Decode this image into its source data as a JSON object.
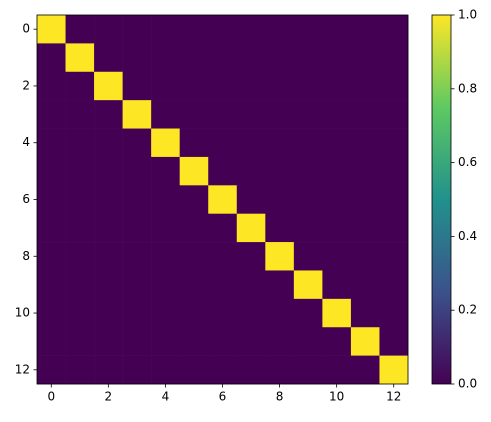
{
  "chart_data": {
    "type": "heatmap",
    "z": [
      [
        1,
        0,
        0,
        0,
        0,
        0,
        0,
        0,
        0,
        0,
        0,
        0,
        0
      ],
      [
        0,
        1,
        0,
        0,
        0,
        0,
        0,
        0,
        0,
        0,
        0,
        0,
        0
      ],
      [
        0,
        0,
        1,
        0,
        0,
        0,
        0,
        0,
        0,
        0,
        0,
        0,
        0
      ],
      [
        0,
        0,
        0,
        1,
        0,
        0,
        0,
        0,
        0,
        0,
        0,
        0,
        0
      ],
      [
        0,
        0,
        0,
        0,
        1,
        0,
        0,
        0,
        0,
        0,
        0,
        0,
        0
      ],
      [
        0,
        0,
        0,
        0,
        0,
        1,
        0,
        0,
        0,
        0,
        0,
        0,
        0
      ],
      [
        0,
        0,
        0,
        0,
        0,
        0,
        1,
        0,
        0,
        0,
        0,
        0,
        0
      ],
      [
        0,
        0,
        0,
        0,
        0,
        0,
        0,
        1,
        0,
        0,
        0,
        0,
        0
      ],
      [
        0,
        0,
        0,
        0,
        0,
        0,
        0,
        0,
        1,
        0,
        0,
        0,
        0
      ],
      [
        0,
        0,
        0,
        0,
        0,
        0,
        0,
        0,
        0,
        1,
        0,
        0,
        0
      ],
      [
        0,
        0,
        0,
        0,
        0,
        0,
        0,
        0,
        0,
        0,
        1,
        0,
        0
      ],
      [
        0,
        0,
        0,
        0,
        0,
        0,
        0,
        0,
        0,
        0,
        0,
        1,
        0
      ],
      [
        0,
        0,
        0,
        0,
        0,
        0,
        0,
        0,
        0,
        0,
        0,
        0,
        1
      ]
    ],
    "xlim": [
      -0.5,
      12.5
    ],
    "xticks": [
      0,
      2,
      4,
      6,
      8,
      10,
      12
    ],
    "ylim": [
      12.5,
      -0.5
    ],
    "yticks": [
      0,
      2,
      4,
      6,
      8,
      10,
      12
    ],
    "clim": [
      0,
      1
    ],
    "cticks": [
      {
        "value": 0,
        "label": "0.0"
      },
      {
        "value": 0.2,
        "label": "0.2"
      },
      {
        "value": 0.4,
        "label": "0.4"
      },
      {
        "value": 0.6,
        "label": "0.6"
      },
      {
        "value": 0.8,
        "label": "0.8"
      },
      {
        "value": 1,
        "label": "1.0"
      }
    ],
    "colormap": [
      "#440154",
      "#3b528b",
      "#21918c",
      "#5ec962",
      "#fde725"
    ]
  }
}
